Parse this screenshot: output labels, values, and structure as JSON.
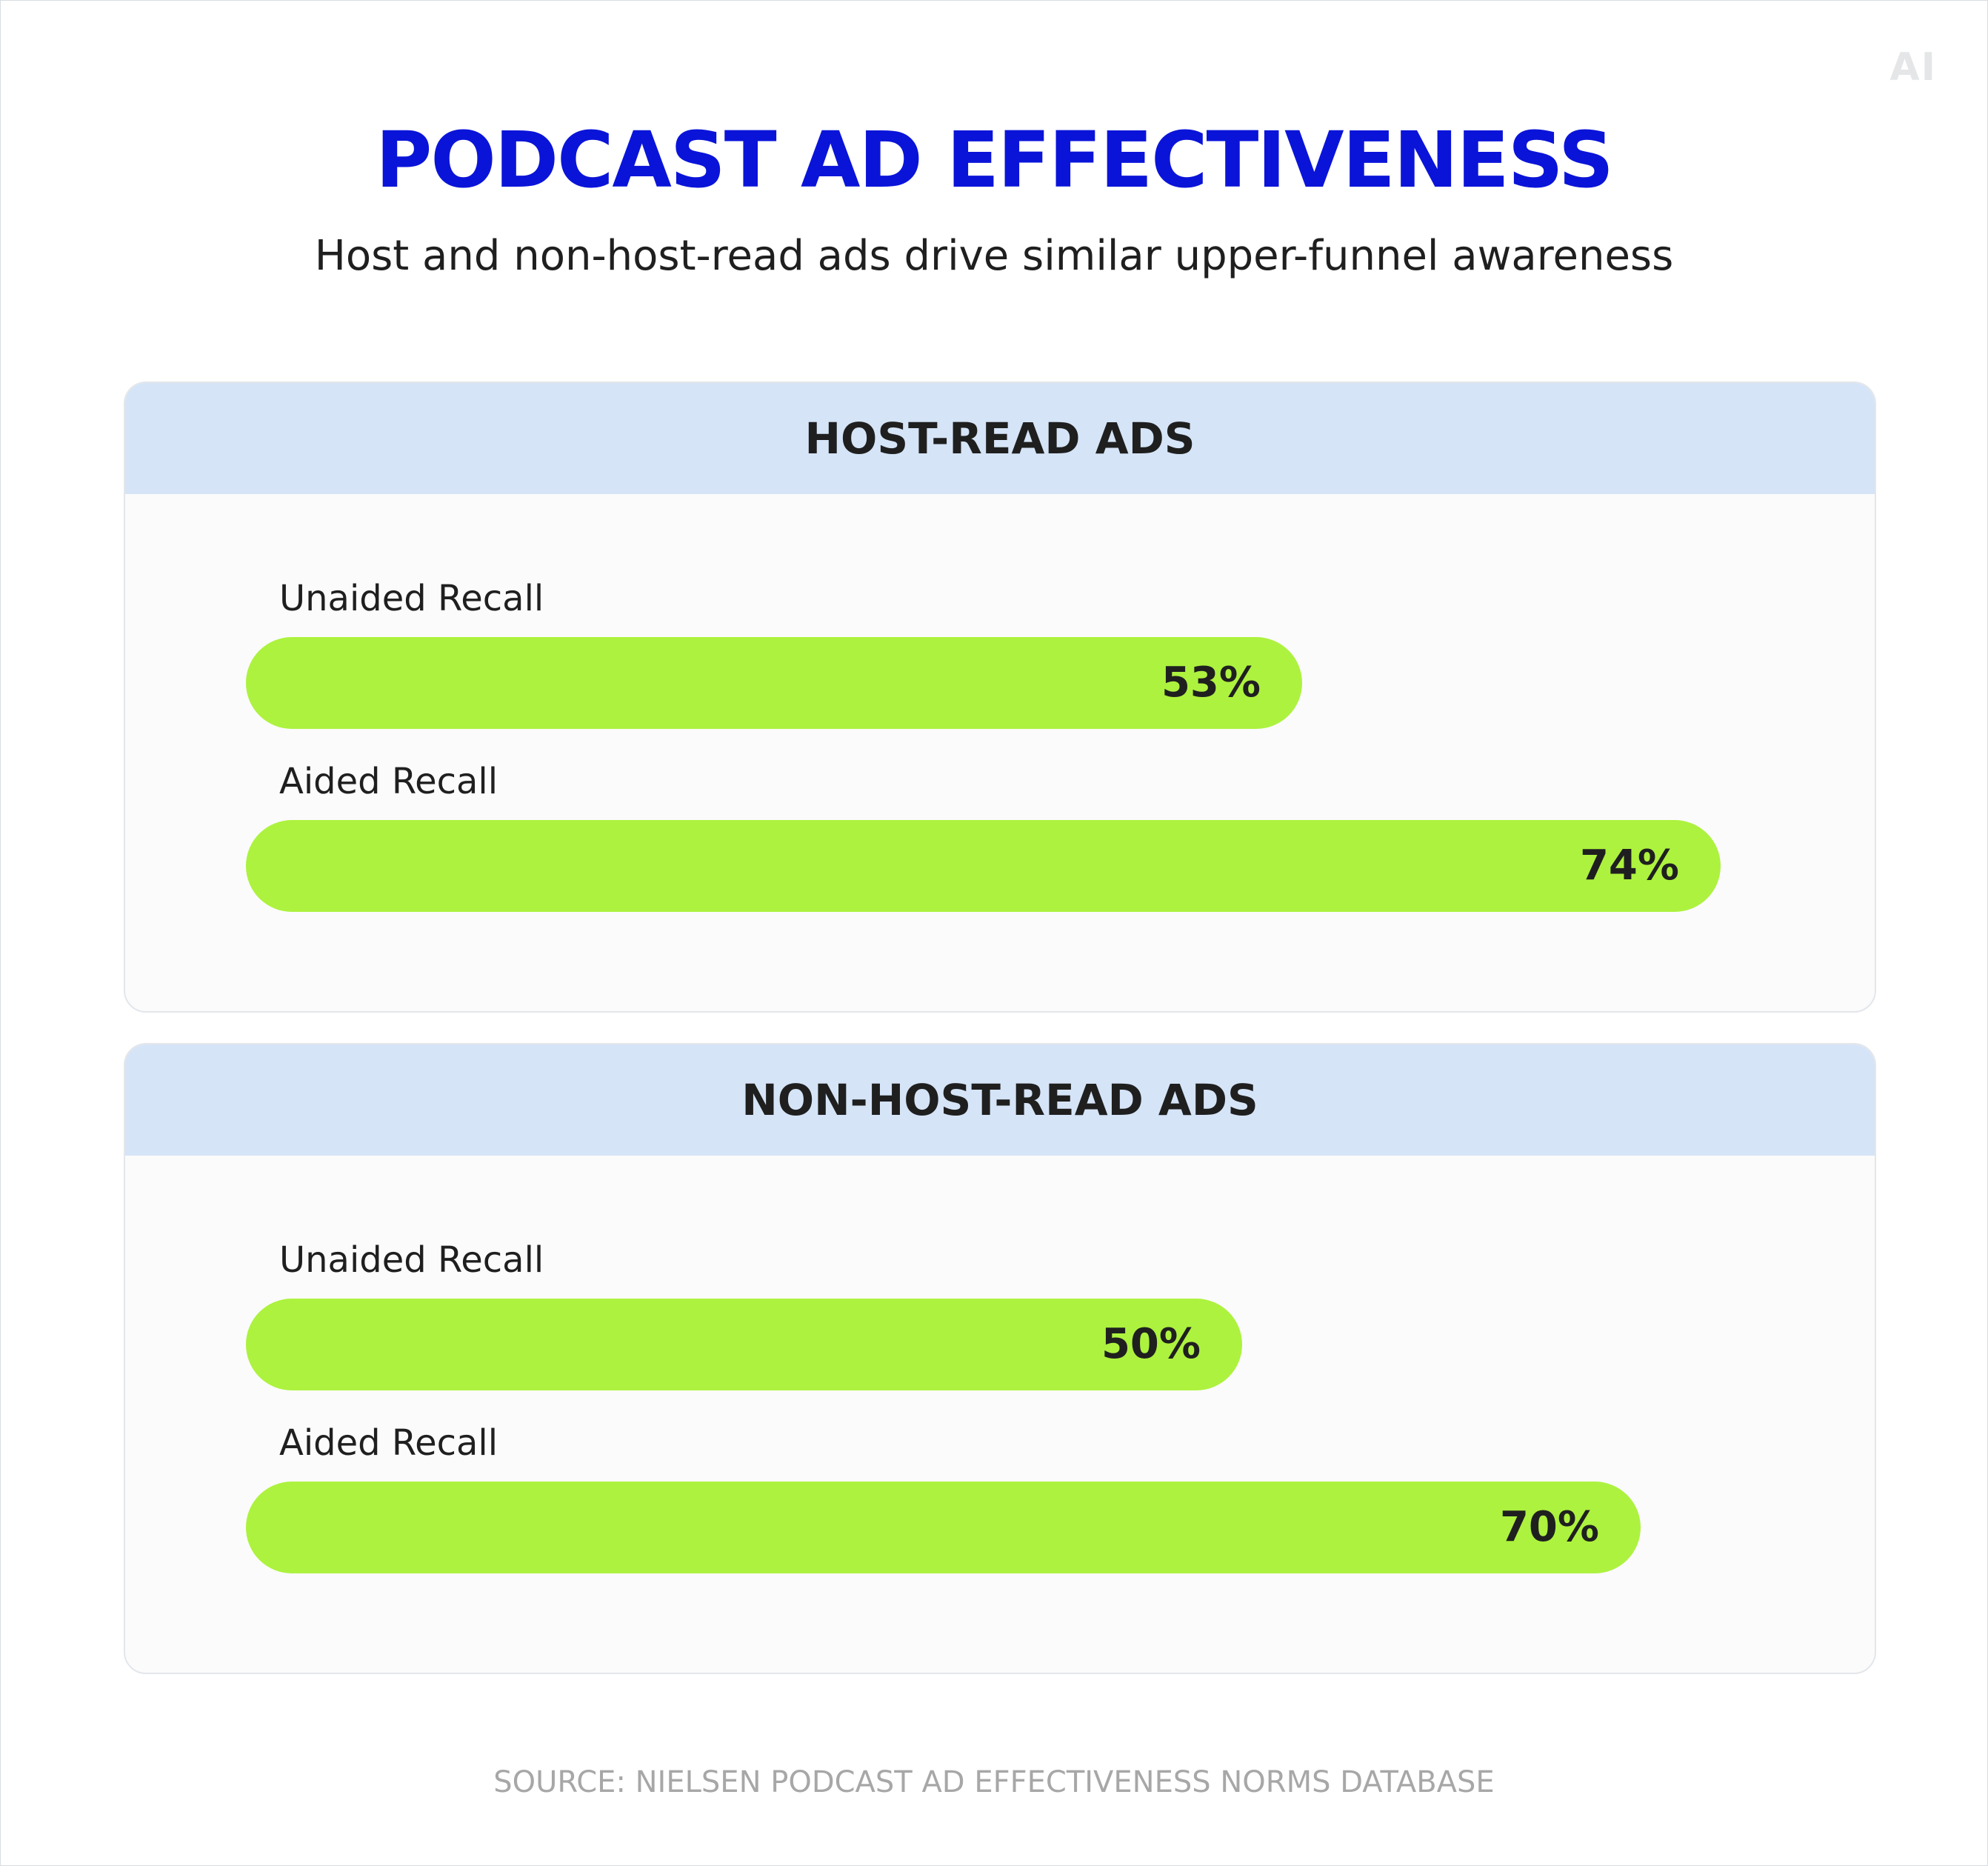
{
  "logo_text": "AI",
  "chart_data": {
    "type": "bar",
    "orientation": "horizontal",
    "title": "PODCAST AD EFFECTIVENESS",
    "subtitle": "Host and non-host-read ads drive similar upper-funnel awareness",
    "source": "SOURCE: NIELSEN PODCAST AD EFFECTIVENESS NORMS DATABASE",
    "unit": "%",
    "xlim": [
      0,
      100
    ],
    "colors": {
      "title": "#0a14d8",
      "bar": "#adf23f",
      "panel_header": "#d5e4f7"
    },
    "panels": [
      {
        "name": "HOST-READ ADS",
        "bars": [
          {
            "label": "Unaided Recall",
            "value": 53,
            "display": "53%"
          },
          {
            "label": "Aided Recall",
            "value": 74,
            "display": "74%"
          }
        ]
      },
      {
        "name": "NON-HOST-READ ADS",
        "bars": [
          {
            "label": "Unaided Recall",
            "value": 50,
            "display": "50%"
          },
          {
            "label": "Aided Recall",
            "value": 70,
            "display": "70%"
          }
        ]
      }
    ]
  }
}
